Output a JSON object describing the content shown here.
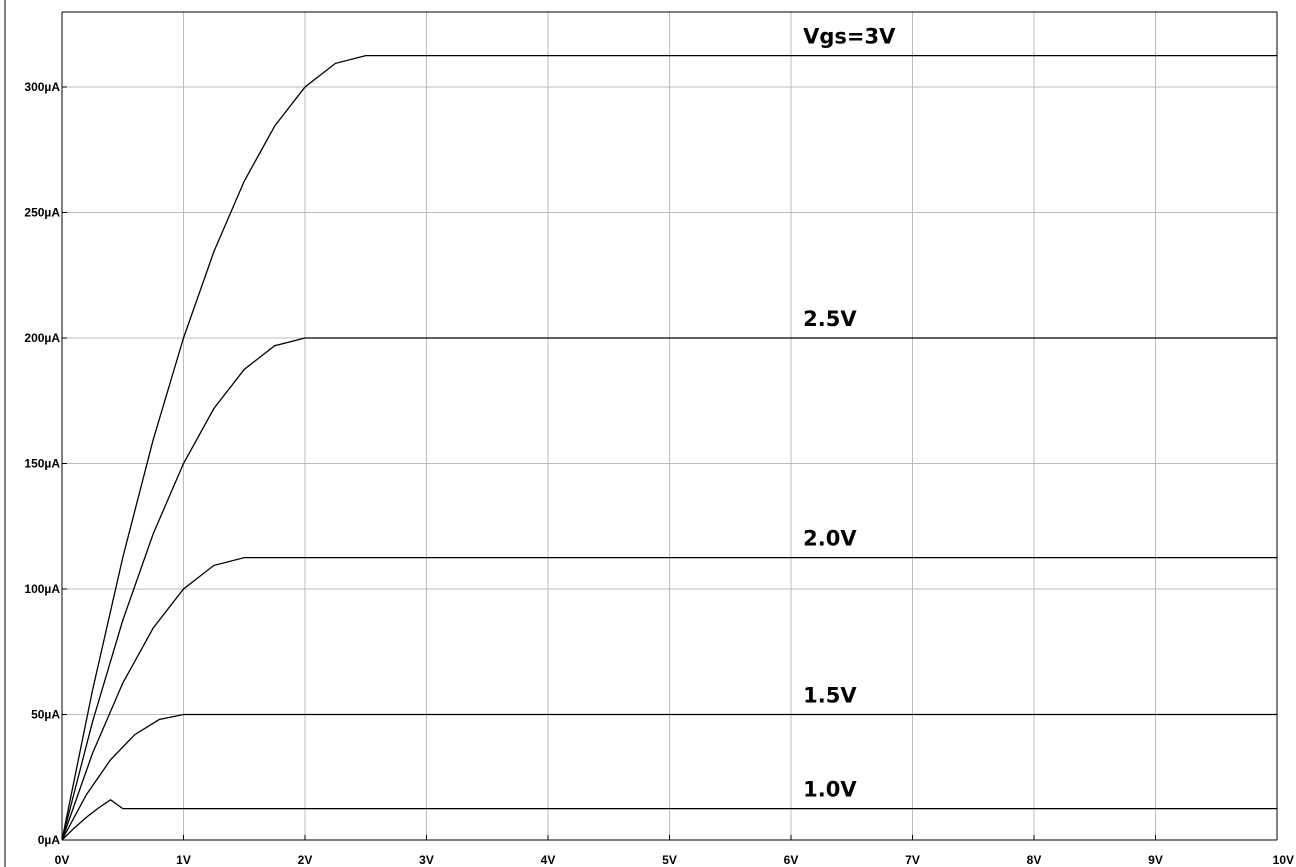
{
  "chart_data": {
    "type": "line",
    "title": "",
    "xlabel": "",
    "ylabel": "",
    "xlim": [
      0,
      10
    ],
    "ylim": [
      0,
      330
    ],
    "grid": true,
    "x_ticks": [
      {
        "value": 0,
        "label": "0V"
      },
      {
        "value": 1,
        "label": "1V"
      },
      {
        "value": 2,
        "label": "2V"
      },
      {
        "value": 3,
        "label": "3V"
      },
      {
        "value": 4,
        "label": "4V"
      },
      {
        "value": 5,
        "label": "5V"
      },
      {
        "value": 6,
        "label": "6V"
      },
      {
        "value": 7,
        "label": "7V"
      },
      {
        "value": 8,
        "label": "8V"
      },
      {
        "value": 9,
        "label": "9V"
      },
      {
        "value": 10,
        "label": "10V"
      }
    ],
    "y_ticks": [
      {
        "value": 0,
        "label": "0µA"
      },
      {
        "value": 50,
        "label": "50µA"
      },
      {
        "value": 100,
        "label": "100µA"
      },
      {
        "value": 150,
        "label": "150µA"
      },
      {
        "value": 200,
        "label": "200µA"
      },
      {
        "value": 250,
        "label": "250µA"
      },
      {
        "value": 300,
        "label": "300µA"
      }
    ],
    "series": [
      {
        "name": "1.0V",
        "x": [
          0,
          0.1,
          0.2,
          0.3,
          0.4,
          0.5,
          10
        ],
        "y": [
          0,
          4.75,
          9,
          12.75,
          16,
          12.5,
          12.5
        ]
      },
      {
        "name": "1.5V",
        "x": [
          0,
          0.2,
          0.4,
          0.6,
          0.8,
          1.0,
          10
        ],
        "y": [
          0,
          18,
          32,
          42,
          48,
          50,
          50
        ]
      },
      {
        "name": "2.0V",
        "x": [
          0,
          0.25,
          0.5,
          0.75,
          1.0,
          1.25,
          1.5,
          10
        ],
        "y": [
          0,
          34.4,
          62.5,
          84.4,
          100,
          109.4,
          112.5,
          112.5
        ]
      },
      {
        "name": "2.5V",
        "x": [
          0,
          0.25,
          0.5,
          0.75,
          1.0,
          1.25,
          1.5,
          1.75,
          2.0,
          10
        ],
        "y": [
          0,
          46.9,
          87.5,
          121.9,
          150,
          171.9,
          187.5,
          196.9,
          200,
          200
        ]
      },
      {
        "name": "Vgs=3V",
        "x": [
          0,
          0.25,
          0.5,
          0.75,
          1.0,
          1.25,
          1.5,
          1.75,
          2.0,
          2.25,
          2.5,
          10
        ],
        "y": [
          0,
          59.4,
          112.5,
          159.4,
          200,
          234.4,
          262.5,
          284.4,
          300,
          309.4,
          312.5,
          312.5
        ]
      }
    ]
  }
}
